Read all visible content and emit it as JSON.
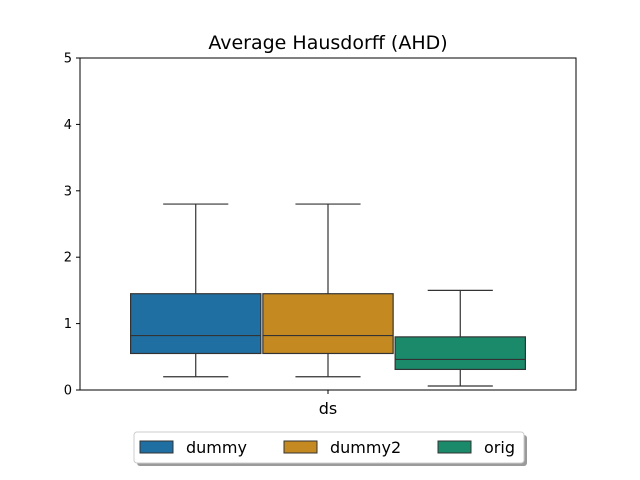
{
  "chart_data": {
    "type": "box",
    "title": "Average Hausdorff (AHD)",
    "xlabel": "",
    "ylabel": "",
    "categories": [
      "ds"
    ],
    "ylim": [
      0,
      5
    ],
    "yticks": [
      0,
      1,
      2,
      3,
      4,
      5
    ],
    "grid": false,
    "legend_position": "bottom-center",
    "series": [
      {
        "name": "dummy",
        "color": "#1f6fa3",
        "min": 0.2,
        "q1": 0.55,
        "median": 0.82,
        "q3": 1.45,
        "max": 2.8
      },
      {
        "name": "dummy2",
        "color": "#c48a21",
        "min": 0.2,
        "q1": 0.55,
        "median": 0.82,
        "q3": 1.45,
        "max": 2.8
      },
      {
        "name": "orig",
        "color": "#1a8a6a",
        "min": 0.06,
        "q1": 0.31,
        "median": 0.46,
        "q3": 0.8,
        "max": 1.5
      }
    ]
  }
}
